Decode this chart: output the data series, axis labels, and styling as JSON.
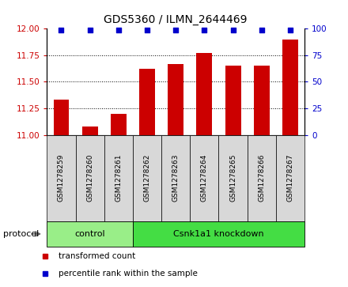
{
  "title": "GDS5360 / ILMN_2644469",
  "samples": [
    "GSM1278259",
    "GSM1278260",
    "GSM1278261",
    "GSM1278262",
    "GSM1278263",
    "GSM1278264",
    "GSM1278265",
    "GSM1278266",
    "GSM1278267"
  ],
  "bar_values": [
    11.33,
    11.08,
    11.2,
    11.62,
    11.67,
    11.77,
    11.65,
    11.65,
    11.9
  ],
  "percentile_values": [
    100,
    100,
    100,
    100,
    100,
    100,
    100,
    100,
    100
  ],
  "bar_color": "#cc0000",
  "percentile_color": "#0000cc",
  "ylim_left": [
    11.0,
    12.0
  ],
  "ylim_right": [
    0,
    100
  ],
  "yticks_left": [
    11.0,
    11.25,
    11.5,
    11.75,
    12.0
  ],
  "yticks_right": [
    0,
    25,
    50,
    75,
    100
  ],
  "groups": [
    {
      "label": "control",
      "start": 0,
      "end": 3,
      "color": "#99ee88"
    },
    {
      "label": "Csnk1a1 knockdown",
      "start": 3,
      "end": 9,
      "color": "#44dd44"
    }
  ],
  "protocol_label": "protocol",
  "legend_items": [
    {
      "label": "transformed count",
      "color": "#cc0000"
    },
    {
      "label": "percentile rank within the sample",
      "color": "#0000cc"
    }
  ],
  "sample_box_color": "#d8d8d8",
  "plot_bg": "#ffffff",
  "bar_width": 0.55
}
